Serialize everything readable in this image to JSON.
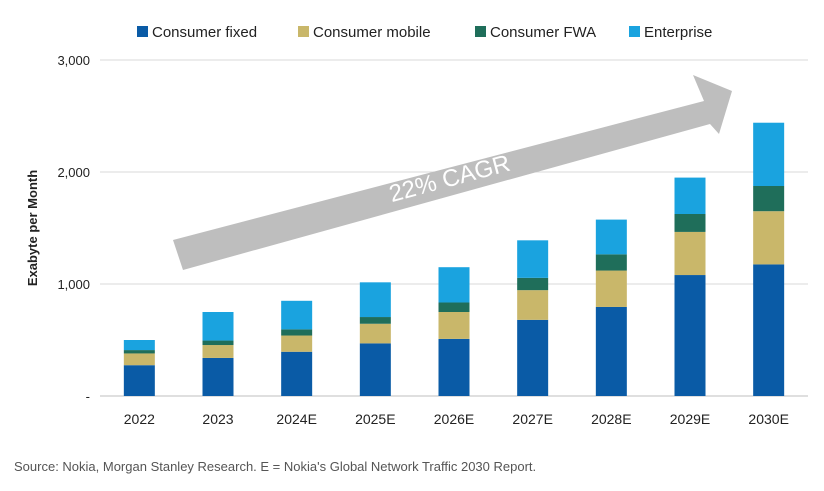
{
  "chart_data": {
    "type": "bar",
    "stacked": true,
    "categories": [
      "2022",
      "2023",
      "2024E",
      "2025E",
      "2026E",
      "2027E",
      "2028E",
      "2029E",
      "2030E"
    ],
    "series": [
      {
        "name": "Consumer fixed",
        "color": "#0a5ba6",
        "values": [
          275,
          340,
          395,
          470,
          510,
          680,
          795,
          1080,
          1175
        ]
      },
      {
        "name": "Consumer mobile",
        "color": "#c9b76a",
        "values": [
          105,
          115,
          145,
          175,
          240,
          265,
          325,
          385,
          475
        ]
      },
      {
        "name": "Consumer FWA",
        "color": "#1f6e5a",
        "values": [
          30,
          40,
          55,
          60,
          85,
          110,
          145,
          160,
          225
        ]
      },
      {
        "name": "Enterprise",
        "color": "#1aa3df",
        "values": [
          90,
          255,
          255,
          310,
          315,
          335,
          310,
          325,
          565
        ]
      }
    ],
    "ylabel": "Exabyte per Month",
    "ylim": [
      0,
      3000
    ],
    "yticks": [
      0,
      1000,
      2000,
      3000
    ],
    "ytick_labels": [
      "-",
      "1,000",
      "2,000",
      "3,000"
    ],
    "legend_position": "top",
    "annotation": "22% CAGR"
  },
  "source_text": "Source: Nokia, Morgan Stanley Research. E = Nokia's Global Network Traffic 2030 Report."
}
